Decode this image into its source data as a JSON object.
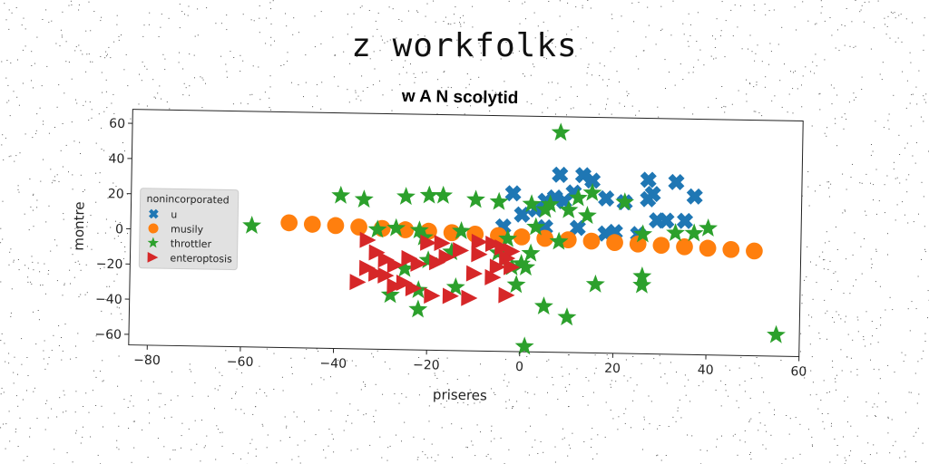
{
  "suptitle": "z workfolks",
  "chart_data": {
    "type": "scatter",
    "title": "w A N scolytid",
    "xlabel": "priseres",
    "ylabel": "montre",
    "xlim": [
      -84,
      60
    ],
    "ylim": [
      -66,
      68
    ],
    "xticks": [
      -80,
      -60,
      -40,
      -20,
      0,
      20,
      40,
      60
    ],
    "yticks": [
      -60,
      -40,
      -20,
      0,
      20,
      40,
      60
    ],
    "grid": false,
    "legend": {
      "title": "nonincorporated",
      "position": "center-left"
    },
    "series": [
      {
        "name": "u",
        "marker": "x",
        "color": "#1f77b4",
        "points": [
          [
            -2,
            24
          ],
          [
            0,
            12
          ],
          [
            3,
            15
          ],
          [
            5,
            20
          ],
          [
            7,
            22
          ],
          [
            8,
            35
          ],
          [
            9,
            20
          ],
          [
            11,
            25
          ],
          [
            13,
            35
          ],
          [
            15,
            32
          ],
          [
            18,
            22
          ],
          [
            22,
            20
          ],
          [
            27,
            33
          ],
          [
            28,
            25
          ],
          [
            33,
            32
          ],
          [
            37,
            24
          ],
          [
            29,
            10
          ],
          [
            27,
            22
          ],
          [
            31,
            10
          ],
          [
            35,
            10
          ],
          [
            18,
            2
          ],
          [
            25,
            2
          ],
          [
            5,
            5
          ],
          [
            12,
            5
          ],
          [
            -4,
            5
          ],
          [
            20,
            3
          ]
        ]
      },
      {
        "name": "musily",
        "marker": "o",
        "color": "#ff7f0e",
        "points": [
          [
            -50,
            5
          ],
          [
            -45,
            4.4
          ],
          [
            -40,
            3.9
          ],
          [
            -35,
            3.3
          ],
          [
            -30,
            2.7
          ],
          [
            -25,
            2.2
          ],
          [
            -20,
            1.6
          ],
          [
            -15,
            1
          ],
          [
            -10,
            0.4
          ],
          [
            -5,
            -0.2
          ],
          [
            0,
            -0.7
          ],
          [
            5,
            -1.3
          ],
          [
            10,
            -1.9
          ],
          [
            15,
            -2.4
          ],
          [
            20,
            -3
          ],
          [
            25,
            -3.6
          ],
          [
            30,
            -4.1
          ],
          [
            35,
            -4.7
          ],
          [
            40,
            -5.3
          ],
          [
            45,
            -5.8
          ],
          [
            50,
            -6.4
          ]
        ]
      },
      {
        "name": "throttler",
        "marker": "*",
        "color": "#2ca02c",
        "points": [
          [
            -58,
            3
          ],
          [
            -39,
            21
          ],
          [
            -34,
            19
          ],
          [
            -25,
            21
          ],
          [
            -20,
            22
          ],
          [
            -17,
            22
          ],
          [
            -10,
            20
          ],
          [
            -5,
            19
          ],
          [
            -13,
            2
          ],
          [
            -22,
            2
          ],
          [
            -31,
            2
          ],
          [
            -27,
            3
          ],
          [
            -21,
            -2
          ],
          [
            8,
            59
          ],
          [
            2,
            18
          ],
          [
            6,
            18
          ],
          [
            12,
            22
          ],
          [
            15,
            25
          ],
          [
            22,
            20
          ],
          [
            5,
            15
          ],
          [
            10,
            15
          ],
          [
            14,
            12
          ],
          [
            3,
            5
          ],
          [
            8,
            -3
          ],
          [
            -3,
            -2
          ],
          [
            2,
            -10
          ],
          [
            -5,
            -10
          ],
          [
            1,
            -18
          ],
          [
            -25,
            -20
          ],
          [
            -20,
            -15
          ],
          [
            -15,
            -10
          ],
          [
            -28,
            -35
          ],
          [
            -22,
            -32
          ],
          [
            -14,
            -30
          ],
          [
            -22,
            -43
          ],
          [
            -1,
            -28
          ],
          [
            5,
            -40
          ],
          [
            10,
            -46
          ],
          [
            -2,
            -18
          ],
          [
            0,
            -16
          ],
          [
            16,
            -27
          ],
          [
            26,
            -27
          ],
          [
            26,
            -22
          ],
          [
            1,
            -63
          ],
          [
            55,
            -54
          ],
          [
            37,
            3
          ],
          [
            26,
            2
          ],
          [
            40,
            6
          ],
          [
            33,
            3
          ]
        ]
      },
      {
        "name": "enteroptosis",
        "marker": ">",
        "color": "#d62728",
        "points": [
          [
            -33,
            -4
          ],
          [
            -31,
            -11
          ],
          [
            -29,
            -15
          ],
          [
            -27,
            -18
          ],
          [
            -33,
            -20
          ],
          [
            -29,
            -24
          ],
          [
            -25,
            -28
          ],
          [
            -24,
            -14
          ],
          [
            -22,
            -17
          ],
          [
            -20,
            -5
          ],
          [
            -17,
            -5
          ],
          [
            -16,
            -13
          ],
          [
            -18,
            -16
          ],
          [
            -13,
            -9
          ],
          [
            -9,
            -4
          ],
          [
            -6,
            -5
          ],
          [
            -9,
            -11
          ],
          [
            -4,
            -7
          ],
          [
            -2,
            -9
          ],
          [
            -3,
            -13
          ],
          [
            -5,
            -18
          ],
          [
            -6,
            -24
          ],
          [
            -10,
            -22
          ],
          [
            -2,
            -18
          ],
          [
            -3,
            -34
          ],
          [
            -11,
            -36
          ],
          [
            -15,
            -35
          ],
          [
            -19,
            -35
          ],
          [
            -23,
            -31
          ],
          [
            -31,
            -23
          ],
          [
            -35,
            -28
          ],
          [
            -27,
            -30
          ]
        ]
      }
    ]
  }
}
